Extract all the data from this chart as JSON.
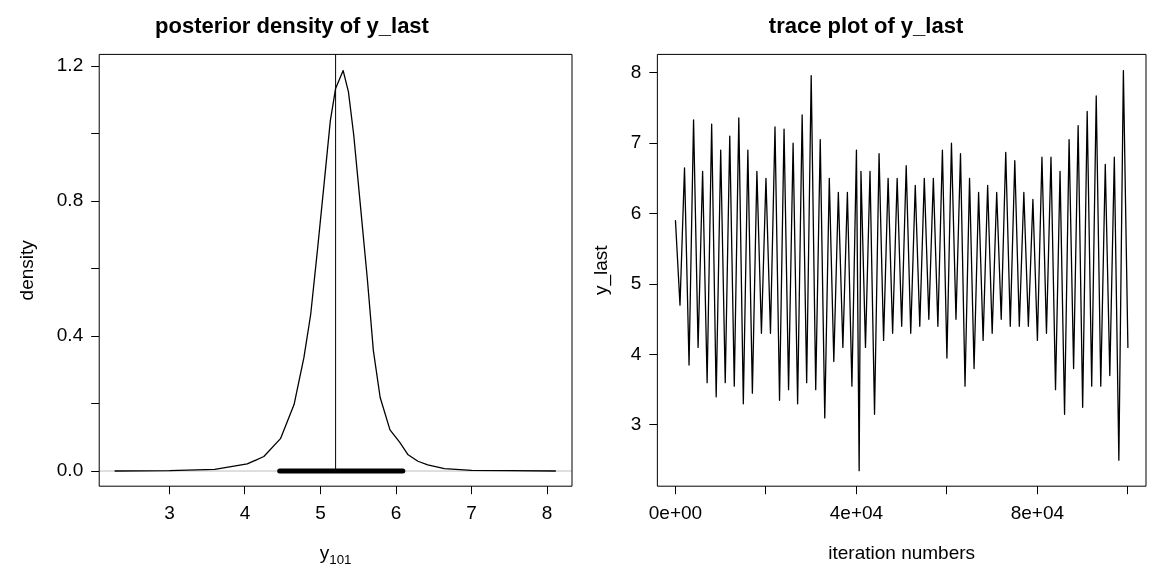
{
  "chart_data": [
    {
      "type": "line",
      "title": "posterior density of y_last",
      "xlabel": "y$_{101}$",
      "ylabel": "density",
      "series": [
        {
          "color": "#000000",
          "x": [
            2.28,
            3.0,
            3.6,
            4.03,
            4.25,
            4.47,
            4.65,
            4.78,
            4.87,
            4.96,
            5.05,
            5.13,
            5.2,
            5.3,
            5.37,
            5.44,
            5.53,
            5.62,
            5.7,
            5.79,
            5.92,
            6.05,
            6.16,
            6.29,
            6.42,
            6.64,
            7.0,
            7.5,
            8.11
          ],
          "values": [
            0,
            0.001,
            0.005,
            0.021,
            0.043,
            0.096,
            0.197,
            0.336,
            0.464,
            0.656,
            0.857,
            1.038,
            1.134,
            1.187,
            1.124,
            0.996,
            0.783,
            0.57,
            0.357,
            0.218,
            0.122,
            0.085,
            0.048,
            0.029,
            0.018,
            0.007,
            0.002,
            0.001,
            0
          ]
        },
        {
          "color": "#000000",
          "x": [
            4.46,
            6.09
          ],
          "values": [
            0,
            0
          ]
        }
      ],
      "xlim": [
        2.07,
        8.33
      ],
      "xticks": [
        3,
        4,
        5,
        6,
        7,
        8
      ],
      "ylim": [
        -0.045,
        1.235
      ],
      "yticks": [
        {
          "value": 0,
          "label": "0.0"
        },
        {
          "value": 0.2,
          "label": null
        },
        0.4,
        {
          "value": 0.6,
          "label": null
        },
        0.8,
        {
          "value": 1.0,
          "label": null
        },
        1.2
      ],
      "ref_lines": [
        {
          "axis": "x",
          "value": 5.2,
          "color": "#000000"
        },
        {
          "axis": "y",
          "value": 0,
          "color": "#bebebe"
        }
      ],
      "grid": false,
      "legend": false,
      "marker": "none",
      "line_style": "solid"
    },
    {
      "type": "line",
      "title": "trace plot of y_last",
      "xlabel": "iteration numbers",
      "ylabel": "y_last",
      "series": [
        {
          "color": "#000000",
          "x": [
            0,
            1000,
            2000,
            3000,
            4000,
            5000,
            6000,
            7000,
            8000,
            9000,
            10000,
            11000,
            12000,
            13000,
            14000,
            15000,
            16000,
            17000,
            18000,
            19000,
            20000,
            21000,
            22000,
            23000,
            24000,
            25000,
            26000,
            27000,
            28000,
            29000,
            30000,
            31000,
            32000,
            33000,
            34000,
            35000,
            36000,
            37000,
            38000,
            39000,
            40000,
            40600,
            41000,
            42000,
            43000,
            44000,
            45000,
            46000,
            47000,
            48000,
            49000,
            50000,
            51000,
            52000,
            53000,
            54000,
            55000,
            56000,
            57000,
            58000,
            59000,
            60000,
            61000,
            62000,
            63000,
            64000,
            65000,
            66000,
            67000,
            68000,
            69000,
            70000,
            71000,
            72000,
            73000,
            74000,
            75000,
            76000,
            77000,
            78000,
            79000,
            80000,
            81000,
            82000,
            83000,
            84000,
            85000,
            86000,
            87000,
            88000,
            89000,
            90000,
            91000,
            92000,
            93000,
            94000,
            95000,
            96000,
            97000,
            98000,
            99000,
            100000
          ],
          "values": [
            5.9,
            4.7,
            6.65,
            3.85,
            7.33,
            4.1,
            6.6,
            3.6,
            7.27,
            3.4,
            6.9,
            3.6,
            7.1,
            3.55,
            7.36,
            3.3,
            6.9,
            3.45,
            6.6,
            4.3,
            6.5,
            4.3,
            7.23,
            3.35,
            7.2,
            3.5,
            7.0,
            3.3,
            7.4,
            3.6,
            7.96,
            3.5,
            7.05,
            3.1,
            6.5,
            3.9,
            6.3,
            4.1,
            6.3,
            3.55,
            6.9,
            2.35,
            6.6,
            4.1,
            6.6,
            3.15,
            6.85,
            4.2,
            6.5,
            4.3,
            6.5,
            4.4,
            6.68,
            4.3,
            6.4,
            4.4,
            6.5,
            4.5,
            6.5,
            4.4,
            6.9,
            3.95,
            7.0,
            4.5,
            6.85,
            3.55,
            6.5,
            3.8,
            6.3,
            4.2,
            6.4,
            4.3,
            6.3,
            4.5,
            6.87,
            4.4,
            6.75,
            4.4,
            6.3,
            4.4,
            6.2,
            4.2,
            6.8,
            4.3,
            6.8,
            3.5,
            6.6,
            3.15,
            7.05,
            3.8,
            7.25,
            3.25,
            7.45,
            3.55,
            7.67,
            3.55,
            6.7,
            3.7,
            6.8,
            2.5,
            8.03,
            4.1
          ]
        }
      ],
      "xlim": [
        -4000,
        104000
      ],
      "xticks": [
        {
          "value": 0,
          "label": "0e+00"
        },
        {
          "value": 20000,
          "label": null
        },
        {
          "value": 40000,
          "label": "4e+04"
        },
        {
          "value": 60000,
          "label": null
        },
        {
          "value": 80000,
          "label": "8e+04"
        },
        {
          "value": 100000,
          "label": null
        }
      ],
      "ylim": [
        2.13,
        8.26
      ],
      "yticks": [
        3,
        4,
        5,
        6,
        7,
        8
      ],
      "grid": false,
      "legend": false,
      "marker": "none",
      "line_style": "solid"
    }
  ]
}
